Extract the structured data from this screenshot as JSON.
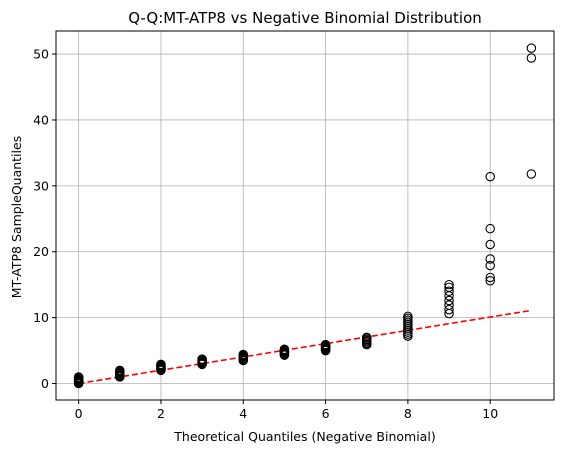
{
  "chart_data": {
    "type": "scatter",
    "title": "Q-Q:MT-ATP8 vs Negative Binomial Distribution",
    "xlabel": "Theoretical Quantiles (Negative Binomial)",
    "ylabel": "MT-ATP8 SampleQuantiles",
    "xlim": [
      -0.55,
      11.55
    ],
    "ylim": [
      -2.5,
      53.5
    ],
    "xticks": [
      0,
      2,
      4,
      6,
      8,
      10
    ],
    "yticks": [
      0,
      10,
      20,
      30,
      40,
      50
    ],
    "grid": true,
    "marker": "open circle",
    "marker_color": "#000000",
    "points": [
      {
        "x": 0,
        "y": [
          0.0,
          0.1,
          0.2,
          0.3,
          0.4,
          0.5,
          0.6,
          0.7,
          0.8,
          0.9,
          1.0
        ]
      },
      {
        "x": 1,
        "y": [
          1.0,
          1.1,
          1.2,
          1.3,
          1.4,
          1.5,
          1.6,
          1.7,
          1.8,
          1.9,
          2.0
        ]
      },
      {
        "x": 2,
        "y": [
          2.0,
          2.1,
          2.2,
          2.3,
          2.4,
          2.5,
          2.6,
          2.7,
          2.8,
          2.9
        ]
      },
      {
        "x": 3,
        "y": [
          2.9,
          3.0,
          3.1,
          3.2,
          3.3,
          3.4,
          3.5,
          3.6,
          3.7
        ]
      },
      {
        "x": 4,
        "y": [
          3.5,
          3.6,
          3.7,
          3.8,
          3.9,
          4.0,
          4.1,
          4.2,
          4.3,
          4.4
        ]
      },
      {
        "x": 5,
        "y": [
          4.3,
          4.4,
          4.5,
          4.6,
          4.7,
          4.8,
          4.9,
          5.0,
          5.1,
          5.2
        ]
      },
      {
        "x": 6,
        "y": [
          5.0,
          5.1,
          5.2,
          5.3,
          5.4,
          5.5,
          5.6,
          5.7,
          5.8,
          5.9
        ]
      },
      {
        "x": 7,
        "y": [
          5.9,
          6.1,
          6.3,
          6.5,
          6.7,
          6.9,
          7.0
        ]
      },
      {
        "x": 8,
        "y": [
          7.2,
          7.5,
          7.8,
          8.1,
          8.4,
          8.7,
          9.0,
          9.3,
          9.6,
          9.9,
          10.2
        ]
      },
      {
        "x": 9,
        "y": [
          10.6,
          11.2,
          11.9,
          12.6,
          13.3,
          14.0,
          14.6,
          15.0
        ]
      },
      {
        "x": 10,
        "y": [
          15.6,
          16.1,
          17.9,
          18.9,
          21.1,
          23.5,
          31.4
        ]
      },
      {
        "x": 11,
        "y": [
          31.8,
          49.4,
          50.9
        ]
      }
    ],
    "reference_line": {
      "style": "dashed",
      "color": "#ff0000",
      "x": [
        0,
        11
      ],
      "y": [
        0,
        11.1
      ]
    }
  }
}
